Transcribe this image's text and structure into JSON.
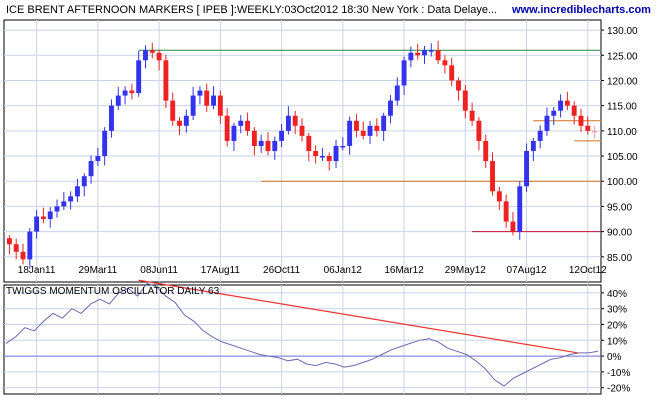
{
  "header": {
    "title": "ICE BRENT AFTERNOON MARKERS [ IPEB ]:WEEKLY:03Oct2012 18:30 New York : Data Delaye...",
    "brand": "www.incrediblecharts.com"
  },
  "colors": {
    "background": "#ffffff",
    "panel": "#ffffff",
    "grid": "#c9d2e8",
    "up": "#3333ee",
    "down": "#ee2222",
    "down_light": "#f4a0a0",
    "brand": "#0000aa",
    "resistance": "#228844",
    "support": "#d07020",
    "floor": "#cc1133",
    "trend": "#ee3333",
    "oscillator": "#6a6ab0",
    "zero_line": "#7777dd"
  },
  "chart_data": [
    {
      "type": "candlestick",
      "title": "ICE BRENT AFTERNOON MARKERS [ IPEB ]:WEEKLY:03Oct2012 18:30 New York : Data Delaye...",
      "x_tick_labels": [
        "18Jan11",
        "29Mar11",
        "08Jun11",
        "17Aug11",
        "26Oct11",
        "06Jan12",
        "16Mar12",
        "29May12",
        "07Aug12",
        "12Oct12"
      ],
      "y_ticks": [
        85,
        90,
        95,
        100,
        105,
        110,
        115,
        120,
        125,
        130
      ],
      "y_tick_labels": [
        "85.00",
        "90.00",
        "95.00",
        "100.00",
        "105.00",
        "110.00",
        "115.00",
        "120.00",
        "125.00",
        "130.00"
      ],
      "ylim": [
        80,
        132
      ],
      "grid": true,
      "close_series": [
        87.5,
        86,
        84.5,
        90,
        93,
        92.5,
        94,
        95,
        96,
        97,
        99,
        101,
        104,
        105,
        110,
        115,
        117,
        118,
        117.5,
        124,
        126,
        125.5,
        124,
        116,
        112,
        111,
        113,
        117,
        118,
        115,
        117,
        113,
        108,
        111,
        112,
        110,
        107,
        108,
        106,
        108,
        110,
        113,
        111,
        109,
        106,
        105,
        105,
        104,
        107,
        107,
        112,
        110,
        109,
        111,
        110,
        113,
        116,
        119,
        124,
        125.5,
        125,
        126,
        126,
        124,
        123,
        120,
        118,
        114,
        112,
        108,
        104,
        98,
        96,
        92,
        90,
        99,
        106,
        108,
        110,
        113,
        114,
        116,
        115,
        113,
        111,
        110,
        110
      ],
      "annotations": [
        {
          "kind": "hline",
          "y": 126,
          "name": "resistance"
        },
        {
          "kind": "hline",
          "y": 112,
          "name": "upper-target"
        },
        {
          "kind": "hline",
          "y": 108,
          "name": "lower-target"
        },
        {
          "kind": "hline",
          "y": 100,
          "name": "support"
        },
        {
          "kind": "hline",
          "y": 90,
          "name": "floor"
        }
      ]
    },
    {
      "type": "line",
      "title": "TWIGGS MOMENTUM OSCILLATOR DAILY 63",
      "y_ticks": [
        -20,
        -10,
        0,
        10,
        20,
        30,
        40
      ],
      "y_tick_labels": [
        "-20%",
        "-10%",
        "0%",
        "10%",
        "20%",
        "30%",
        "40%"
      ],
      "ylim": [
        -24,
        45
      ],
      "grid": true,
      "values": [
        8,
        12,
        18,
        16,
        22,
        27,
        24,
        30,
        27,
        33,
        36,
        33,
        40,
        43,
        38,
        46,
        44,
        38,
        34,
        26,
        22,
        16,
        12,
        9,
        7,
        5,
        3,
        1,
        0,
        -1,
        -3,
        -2,
        -5,
        -6,
        -4,
        -5,
        -7,
        -6,
        -4,
        -2,
        1,
        4,
        6,
        8,
        10,
        11,
        9,
        5,
        3,
        1,
        -3,
        -8,
        -15,
        -19,
        -14,
        -11,
        -8,
        -5,
        -2,
        -1,
        1,
        2,
        2,
        3
      ],
      "trendline": [
        48,
        2
      ]
    }
  ]
}
